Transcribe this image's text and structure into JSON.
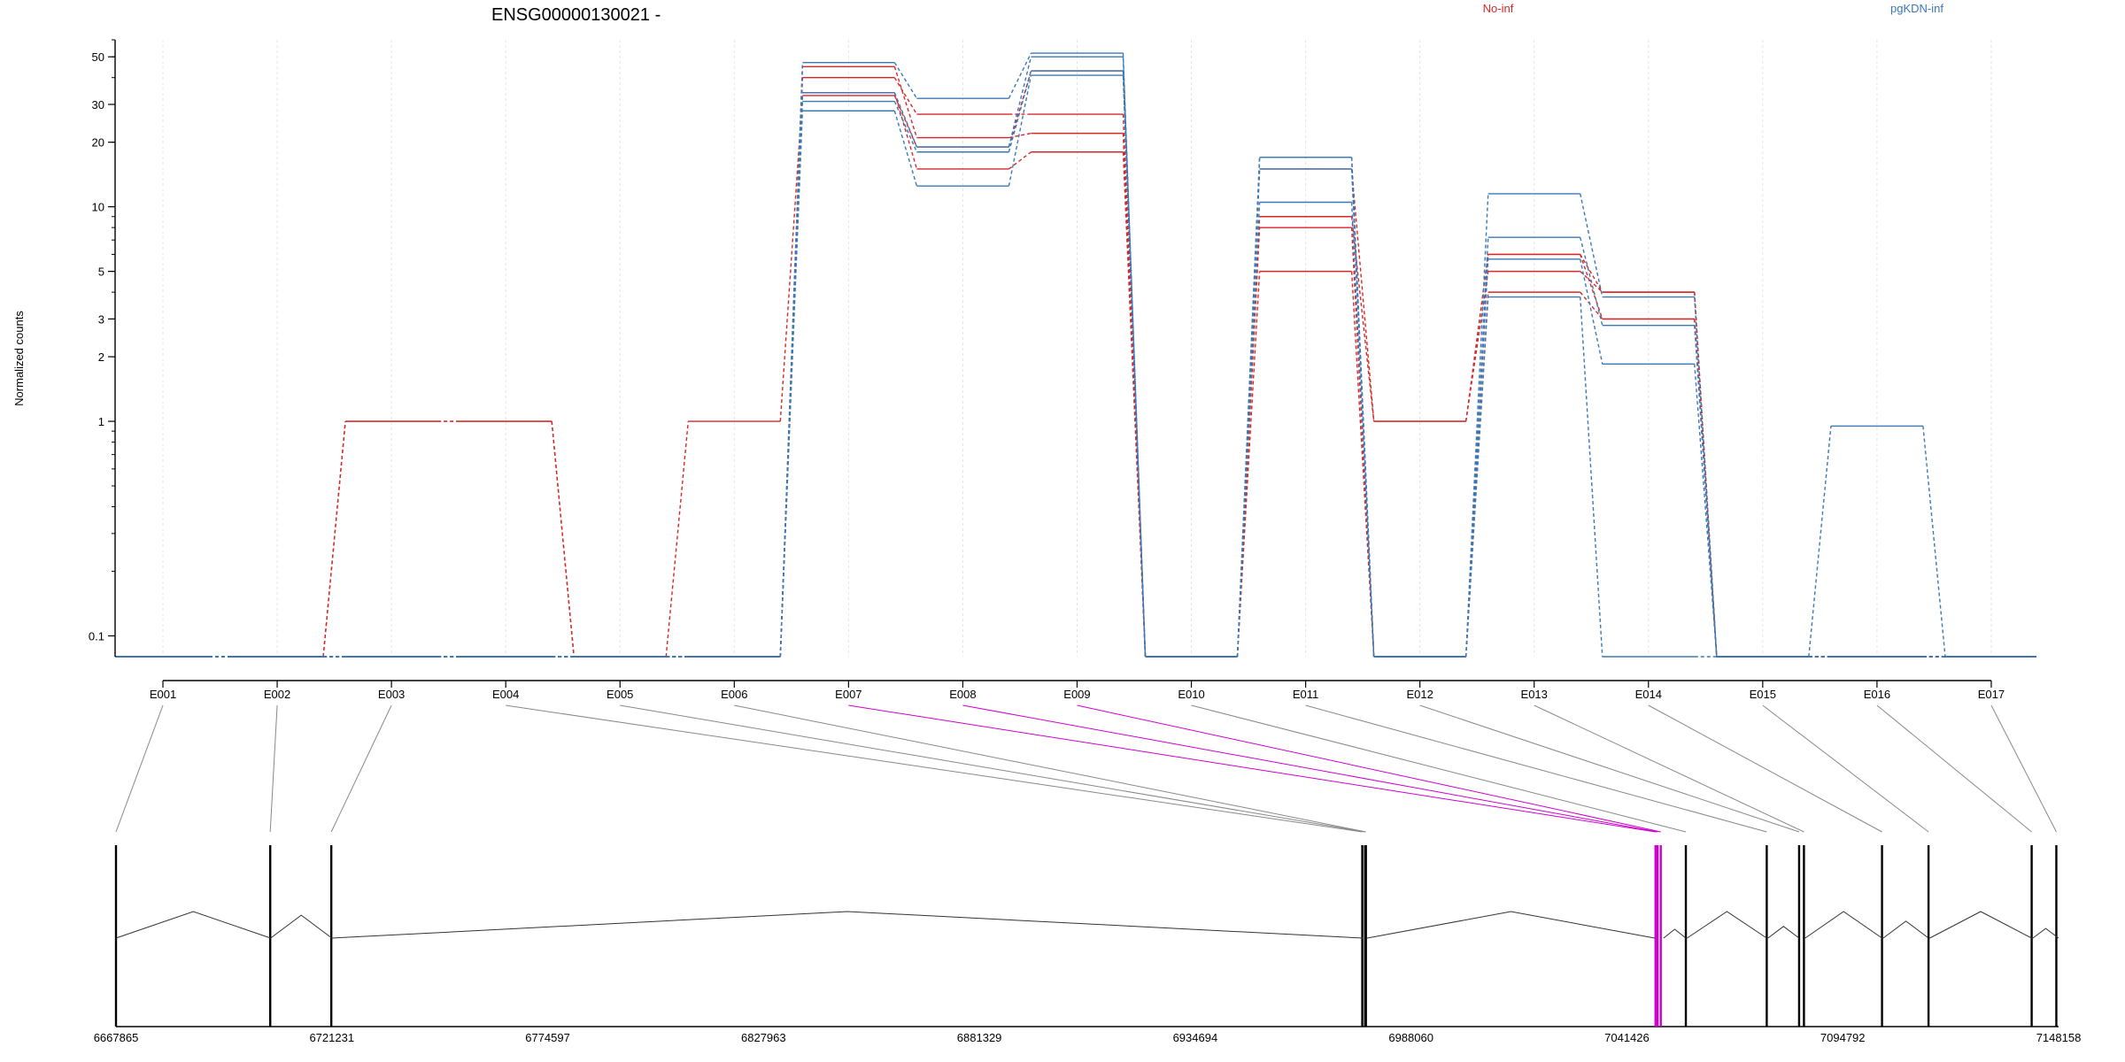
{
  "chart_data": {
    "type": "line",
    "title": "ENSG00000130021 -",
    "xlabel": "",
    "ylabel": "Normalized counts",
    "yscale": "log",
    "ylim": [
      0.08,
      60
    ],
    "yticks": [
      0.1,
      1,
      2,
      3,
      5,
      10,
      20,
      30,
      50
    ],
    "ytick_labels": [
      "0.1",
      "1",
      "2",
      "3",
      "5",
      "10",
      "20",
      "30",
      "50"
    ],
    "categories": [
      "E001",
      "E002",
      "E003",
      "E004",
      "E005",
      "E006",
      "E007",
      "E008",
      "E009",
      "E010",
      "E011",
      "E012",
      "E013",
      "E014",
      "E015",
      "E016",
      "E017"
    ],
    "legend": [
      {
        "name": "No-inf",
        "color": "#d62728",
        "position": "top"
      },
      {
        "name": "pgKDN-inf",
        "color": "#3a78b5",
        "position": "top-right"
      }
    ],
    "series": [
      {
        "group": "No-inf",
        "values": [
          0.08,
          0.08,
          1,
          1,
          0.08,
          1,
          33,
          19,
          43,
          0.08,
          15,
          1,
          6,
          4,
          0.08,
          0.08,
          0.08
        ]
      },
      {
        "group": "No-inf",
        "values": [
          0.08,
          0.08,
          1,
          1,
          0.08,
          0.08,
          40,
          27,
          27,
          0.08,
          9,
          1,
          5,
          4,
          0.08,
          0.08,
          0.08
        ]
      },
      {
        "group": "No-inf",
        "values": [
          0.08,
          0.08,
          0.08,
          0.08,
          0.08,
          0.08,
          45,
          21,
          22,
          0.08,
          8,
          0.08,
          4,
          3,
          0.08,
          0.08,
          0.08
        ]
      },
      {
        "group": "No-inf",
        "values": [
          0.08,
          0.08,
          0.08,
          0.08,
          0.08,
          0.08,
          34,
          15,
          18,
          0.08,
          5,
          0.08,
          6,
          3,
          0.08,
          0.08,
          0.08
        ]
      },
      {
        "group": "pgKDN-inf",
        "values": [
          0.08,
          0.08,
          0.08,
          0.08,
          0.08,
          0.08,
          47,
          32,
          52,
          0.08,
          17,
          0.08,
          11.5,
          3.8,
          0.08,
          0.95,
          0.08
        ]
      },
      {
        "group": "pgKDN-inf",
        "values": [
          0.08,
          0.08,
          0.08,
          0.08,
          0.08,
          0.08,
          34,
          19,
          50,
          0.08,
          17,
          0.08,
          7.2,
          2.8,
          0.08,
          0.08,
          0.08
        ]
      },
      {
        "group": "pgKDN-inf",
        "values": [
          0.08,
          0.08,
          0.08,
          0.08,
          0.08,
          0.08,
          31,
          18,
          43,
          0.08,
          10.5,
          0.08,
          5.7,
          1.85,
          0.08,
          0.08,
          0.08
        ]
      },
      {
        "group": "pgKDN-inf",
        "values": [
          0.08,
          0.08,
          0.08,
          0.08,
          0.08,
          0.08,
          28,
          12.5,
          41,
          0.08,
          15,
          0.08,
          3.8,
          0.08,
          0.08,
          0.08,
          0.08
        ]
      }
    ],
    "gene_model": {
      "coord_ticks": [
        "6667865",
        "6721231",
        "6774597",
        "6827963",
        "6881329",
        "6934694",
        "6988060",
        "7041426",
        "7094792",
        "7148158"
      ],
      "coord_range": [
        6667865,
        7148158
      ],
      "highlight_color": "#cc00cc",
      "highlighted_exons": [
        "E007",
        "E008",
        "E009"
      ],
      "exon_genomic_starts": [
        6667865,
        6706000,
        6721100,
        6976000,
        6976700,
        6976900,
        7048500,
        7049000,
        7049800,
        7056000,
        7076000,
        7084000,
        7085200,
        7104500,
        7116000,
        7141500,
        7147600
      ],
      "intron_junctions": [
        [
          6667865,
          6706100
        ],
        [
          6706100,
          6721231
        ],
        [
          6721231,
          6976200
        ],
        [
          6977200,
          7048300
        ],
        [
          7050500,
          7056000
        ],
        [
          7056300,
          7076000
        ],
        [
          7076300,
          7084000
        ],
        [
          7085500,
          7104500
        ],
        [
          7104800,
          7116000
        ],
        [
          7116300,
          7141500
        ],
        [
          7141800,
          7148158
        ]
      ]
    }
  }
}
